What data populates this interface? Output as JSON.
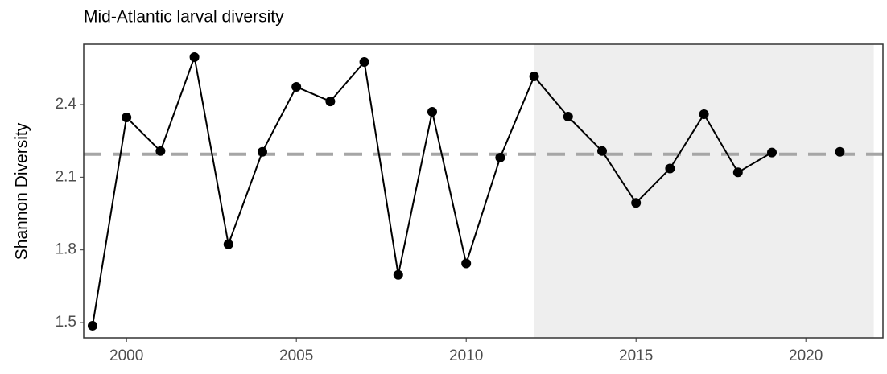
{
  "chart_data": {
    "type": "line",
    "title": "Mid-Atlantic larval diversity",
    "y_label": "Shannon Diversity",
    "x": [
      1999,
      2000,
      2001,
      2002,
      2003,
      2004,
      2005,
      2006,
      2007,
      2008,
      2009,
      2010,
      2011,
      2012,
      2013,
      2014,
      2015,
      2016,
      2017,
      2018,
      2019,
      2020,
      2021
    ],
    "series": [
      {
        "color": "#000000",
        "values": [
          1.487,
          2.347,
          2.208,
          2.596,
          1.823,
          2.205,
          2.473,
          2.413,
          2.576,
          1.697,
          2.37,
          1.744,
          2.181,
          2.516,
          2.35,
          2.208,
          1.994,
          2.136,
          2.36,
          2.12,
          2.202,
          null,
          2.205
        ]
      }
    ],
    "mean_line": 2.195,
    "mean_color": "#a6a6a6",
    "shade_x": [
      2012,
      2022
    ],
    "shade_color": "#eeeeee",
    "xlim": [
      1998.74,
      2022.27
    ],
    "ylim": [
      1.437,
      2.649
    ],
    "xticks": [
      2000,
      2005,
      2010,
      2015,
      2020
    ],
    "yticks": [
      1.5,
      1.8,
      2.1,
      2.4
    ]
  }
}
